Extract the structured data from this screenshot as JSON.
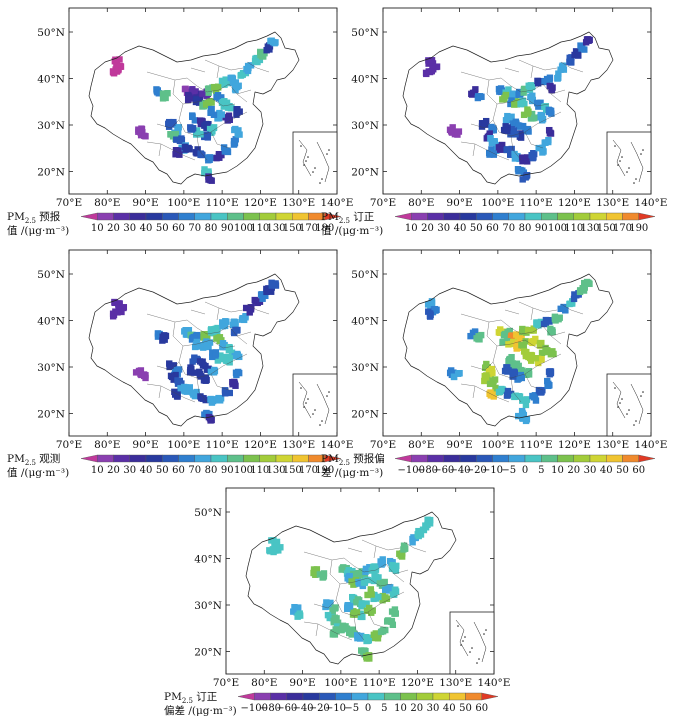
{
  "panels": [
    {
      "id": "forecast",
      "title_main": "PM",
      "title_sub": "2.5",
      "title_rest": " 预报",
      "title_line2": "值 /(μg·m⁻³)",
      "palette": "concentration",
      "scale": "conc",
      "hot": "north"
    },
    {
      "id": "corrected",
      "title_main": "PM",
      "title_sub": "2.5",
      "title_rest": " 订正",
      "title_line2": "值 /(μg·m⁻³)",
      "palette": "concentration",
      "scale": "conc",
      "hot": "mild"
    },
    {
      "id": "observed",
      "title_main": "PM",
      "title_sub": "2.5",
      "title_rest": " 观测",
      "title_line2": "值 /(μg·m⁻³)",
      "palette": "concentration",
      "scale": "conc",
      "hot": "mild2"
    },
    {
      "id": "forecast-bias",
      "title_main": "PM",
      "title_sub": "2.5",
      "title_rest": " 预报偏",
      "title_line2": "差 /(μg·m⁻³)",
      "palette": "bias",
      "scale": "bias",
      "hot": "bias1"
    },
    {
      "id": "corrected-bias",
      "title_main": "PM",
      "title_sub": "2.5",
      "title_rest": " 订正",
      "title_line2": "偏差 /(μg·m⁻³)",
      "palette": "bias",
      "scale": "bias",
      "hot": "bias2"
    }
  ],
  "axes": {
    "lon_ticks": [
      "70°E",
      "80°E",
      "90°E",
      "100°E",
      "110°E",
      "120°E",
      "130°E",
      "140°E"
    ],
    "lat_ticks": [
      "50°N",
      "40°N",
      "30°N",
      "20°N"
    ]
  },
  "scales": {
    "conc": {
      "labels": [
        "10",
        "20",
        "30",
        "40",
        "50",
        "60",
        "70",
        "80",
        "90",
        "100",
        "110",
        "130",
        "150",
        "170",
        "190"
      ]
    },
    "bias": {
      "labels": [
        "−100",
        "−80",
        "−60",
        "−40",
        "−20",
        "−10",
        "−5",
        "0",
        "5",
        "10",
        "20",
        "30",
        "40",
        "50",
        "60"
      ]
    }
  },
  "colors": {
    "conc": [
      "#c0399b",
      "#8a3fb0",
      "#5a2fa6",
      "#3b2d9a",
      "#28399e",
      "#2a58b8",
      "#2f7fcf",
      "#41a6dd",
      "#49c4c4",
      "#5ec08a",
      "#7cc24e",
      "#a2cc3a",
      "#cfd534",
      "#f0c431",
      "#f08a2d",
      "#e03a25"
    ],
    "bias": [
      "#c0399b",
      "#8a3fb0",
      "#5a2fa6",
      "#3b2d9a",
      "#28399e",
      "#2a58b8",
      "#2f7fcf",
      "#41a6dd",
      "#49c4c4",
      "#5ec08a",
      "#7cc24e",
      "#a2cc3a",
      "#cfd534",
      "#f0c431",
      "#f08a2d",
      "#e03a25"
    ]
  }
}
